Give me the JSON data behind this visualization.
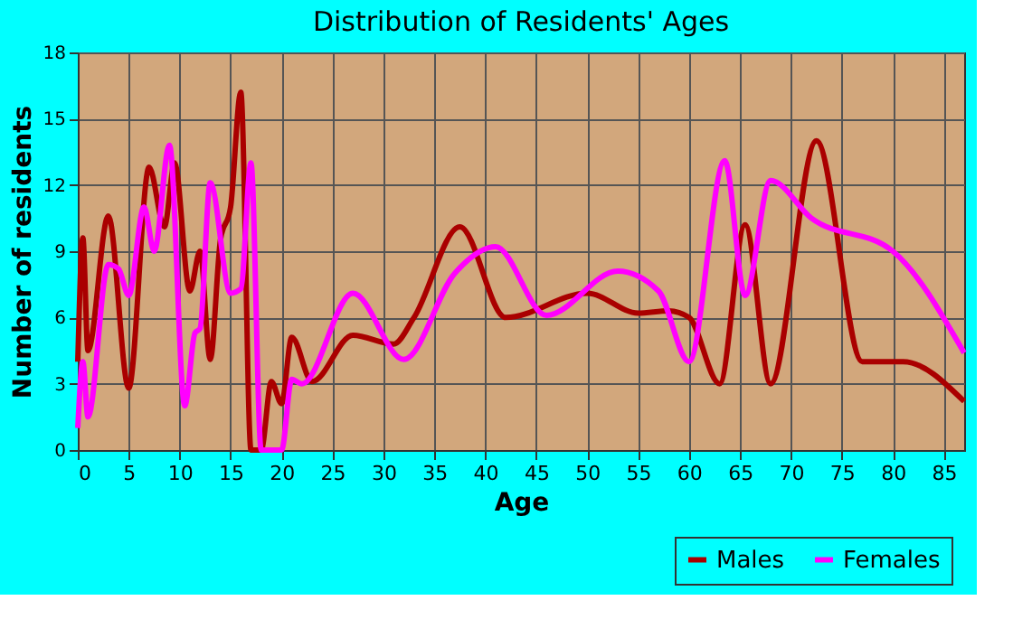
{
  "chart_data": {
    "type": "line",
    "title": "Distribution of Residents' Ages",
    "xlabel": "Age",
    "ylabel": "Number of residents",
    "xlim": [
      0,
      87
    ],
    "xticks": [
      0,
      5,
      10,
      15,
      20,
      25,
      30,
      35,
      40,
      45,
      50,
      55,
      60,
      65,
      70,
      75,
      80,
      85
    ],
    "ylim": [
      0,
      18
    ],
    "yticks": [
      0,
      3,
      6,
      9,
      12,
      15,
      18
    ],
    "grid": true,
    "legend": "bottom right",
    "marker": "none",
    "line_style": "solid",
    "series": [
      {
        "name": "Males",
        "color": "#aa0000",
        "x": [
          0,
          0.5,
          1,
          3,
          5,
          7,
          8.5,
          9.5,
          11,
          12,
          13,
          14,
          15,
          16,
          17,
          18,
          19,
          20,
          21,
          23,
          27,
          31,
          33,
          37.5,
          42,
          50,
          55,
          58,
          60,
          63,
          65.5,
          68,
          72.5,
          77,
          81,
          87
        ],
        "values": [
          4,
          9.6,
          4.5,
          10.6,
          2.8,
          12.8,
          10.1,
          13,
          7.2,
          9,
          4.1,
          9.5,
          11,
          16.2,
          0,
          0,
          3.1,
          2.1,
          5.1,
          3.1,
          5.2,
          4.8,
          6,
          10.1,
          6,
          7.1,
          6.2,
          6.3,
          6,
          3,
          10.2,
          3,
          14,
          4,
          4,
          2.2
        ]
      },
      {
        "name": "Females",
        "color": "#ff00ff",
        "x": [
          0,
          0.5,
          1,
          3,
          4,
          5,
          6.5,
          7.5,
          9,
          10.5,
          11.5,
          12,
          13,
          15,
          16,
          17,
          18,
          20,
          21,
          22,
          27,
          32,
          37,
          41,
          46,
          53,
          57,
          60,
          63.5,
          65.5,
          68,
          72,
          80,
          87
        ],
        "values": [
          1,
          4,
          1.5,
          8.4,
          8.2,
          7,
          11,
          9,
          13.8,
          2,
          5.3,
          5.5,
          12.1,
          7.1,
          7.3,
          13,
          0,
          0,
          3.2,
          3,
          7.1,
          4.1,
          8,
          9.2,
          6.1,
          8.1,
          7.2,
          4,
          13.1,
          7,
          12.2,
          10.5,
          9,
          4.4
        ]
      }
    ]
  }
}
